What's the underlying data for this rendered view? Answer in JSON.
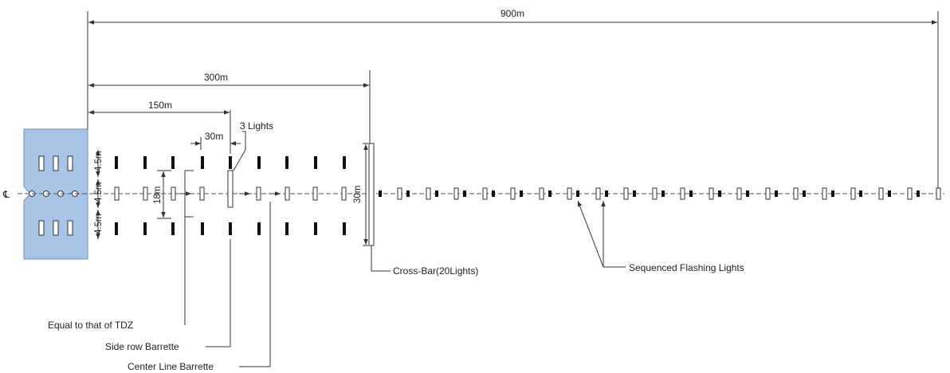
{
  "diagram": {
    "centerline_symbol": "℄",
    "dimensions": {
      "total": "900m",
      "crossbar_distance": "300m",
      "half": "150m",
      "barrette_spacing": "30m",
      "side_row_spacing_top": "4.5m",
      "side_row_spacing_mid": "4.5m",
      "side_row_spacing_bottom": "4.5m",
      "side_row_width": "18m",
      "crossbar_length": "30m"
    },
    "labels": {
      "three_lights": "3 Lights",
      "cross_bar": "Cross-Bar(20Lights)",
      "sequenced_flashing": "Sequenced Flashing Lights",
      "equal_tdz": "Equal to that of TDZ",
      "side_row_barrette": "Side row Barrette",
      "center_line_barrette": "Center Line Barrette"
    },
    "colors": {
      "runway_fill": "#a9c4e6",
      "runway_stroke": "#6f8fb8",
      "line": "#333333",
      "light_dark": "#111111"
    }
  }
}
